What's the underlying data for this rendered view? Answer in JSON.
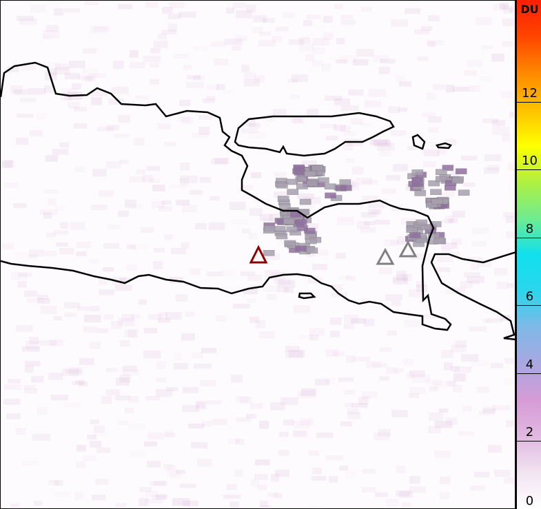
{
  "colorbar": {
    "unit": "DU",
    "min": 0,
    "max": 15,
    "ticks": [
      0,
      2,
      4,
      6,
      8,
      10,
      12
    ],
    "colors": [
      "#ffffff",
      "#f1e4f1",
      "#e0b8e0",
      "#d79bd7",
      "#a8a8e0",
      "#7fb8e8",
      "#2ad6ec",
      "#10e0ee",
      "#70ec90",
      "#b0f040",
      "#ffff00",
      "#ffc000",
      "#ff8800",
      "#ff4400",
      "#ff2000"
    ]
  },
  "markers": [
    {
      "name": "volcano-active",
      "color": "#8b0000"
    },
    {
      "name": "volcano",
      "color": "#808080"
    },
    {
      "name": "volcano",
      "color": "#808080"
    }
  ]
}
